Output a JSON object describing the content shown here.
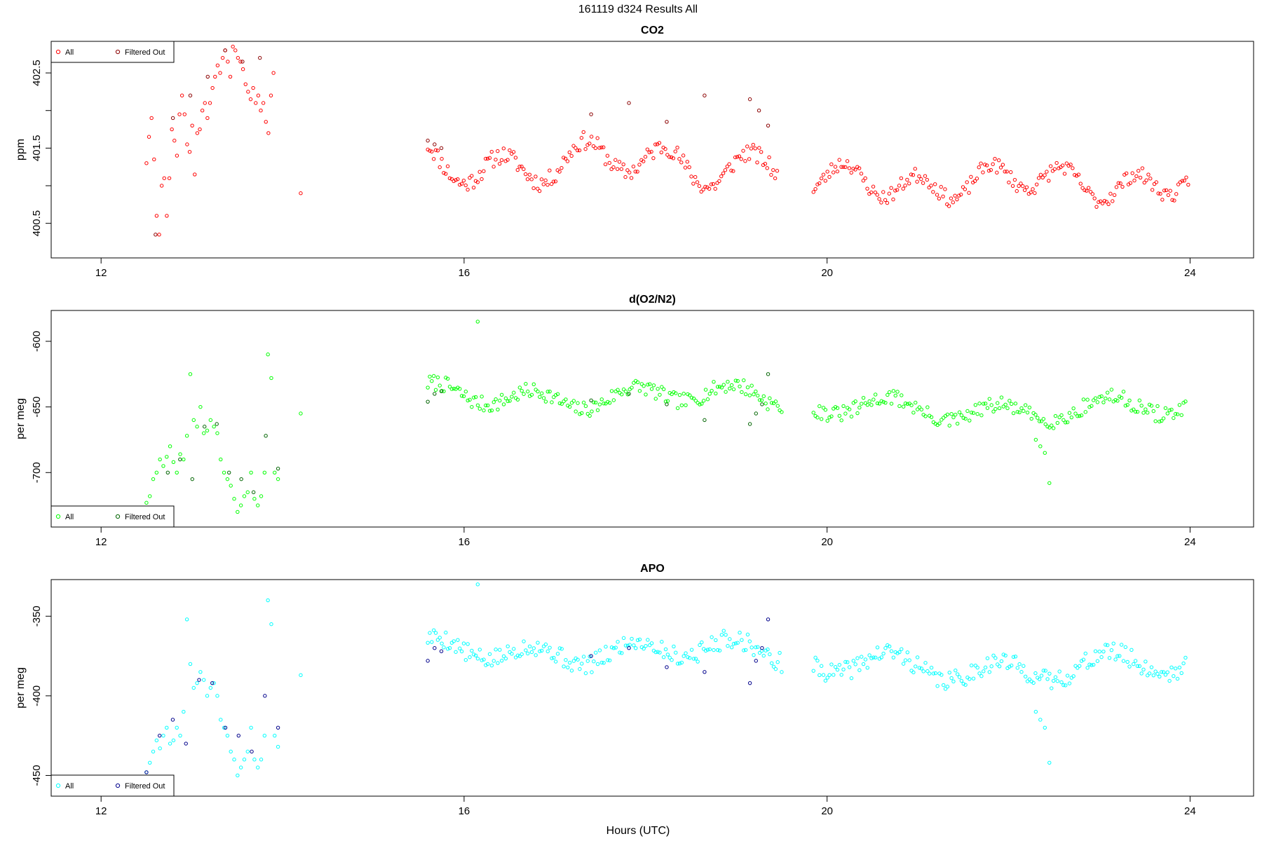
{
  "figure_title": "161119   d324   Results All",
  "x_axis_label": "Hours (UTC)",
  "chart_data": [
    {
      "type": "scatter",
      "title": "CO2",
      "ylabel": "ppm",
      "xlim": [
        11.45,
        24.7
      ],
      "ylim": [
        400.04,
        402.92
      ],
      "xticks": [
        12,
        16,
        20,
        24
      ],
      "yticks": [
        400.5,
        401.0,
        401.5,
        402.0,
        402.5
      ],
      "ytick_labels": [
        "400.5",
        "",
        "401.5",
        "",
        "402.5"
      ],
      "colors": {
        "all": "#ff0000",
        "filtered": "#8b0000"
      },
      "legend": {
        "position": "top-left",
        "entries": [
          "All",
          "Filtered Out"
        ]
      },
      "series": [
        {
          "key": "all",
          "segments": [
            {
              "x0": 12.5,
              "x1": 13.9,
              "points": [
                401.3,
                401.65,
                401.9,
                401.35,
                400.6,
                400.35,
                401.0,
                401.1,
                400.6,
                401.1,
                401.75,
                401.6,
                401.4,
                401.95,
                402.2,
                401.95,
                401.55,
                401.45,
                401.8,
                401.15,
                401.7,
                401.75,
                402.0,
                402.1,
                401.9,
                402.1,
                402.3,
                402.45,
                402.6,
                402.5,
                402.7,
                402.8,
                402.65,
                402.45,
                402.85,
                402.8,
                402.7,
                402.65,
                402.55,
                402.35,
                402.25,
                402.15,
                402.3,
                402.1,
                402.2,
                402.0,
                402.1,
                401.85,
                401.7,
                402.2,
                402.5
              ]
            },
            {
              "x0": 14.2,
              "x1": 14.2,
              "points": [
                400.9
              ]
            },
            {
              "x0": 15.6,
              "x1": 19.45,
              "series": "wave",
              "base": 401.3,
              "amp": 0.22,
              "period": 0.9,
              "noise": 0.12,
              "seed": 11
            },
            {
              "x0": 19.85,
              "x1": 23.98,
              "series": "wave",
              "base": 401.05,
              "amp": 0.18,
              "period": 0.8,
              "noise": 0.1,
              "seed": 23
            }
          ]
        },
        {
          "key": "filtered",
          "segments": [
            {
              "x0": 12.6,
              "x1": 13.75,
              "points": [
                400.35,
                401.9,
                402.2,
                402.45,
                402.8,
                402.65,
                402.7
              ]
            },
            {
              "x0": 15.6,
              "x1": 15.75,
              "points": [
                401.6,
                401.55,
                401.5
              ]
            },
            {
              "x0": 17.4,
              "x1": 18.65,
              "points": [
                401.95,
                402.1,
                401.85,
                402.2
              ]
            },
            {
              "x0": 19.15,
              "x1": 19.35,
              "points": [
                402.15,
                402.0,
                401.8
              ]
            }
          ]
        }
      ]
    },
    {
      "type": "scatter",
      "title": "d(O2/N2)",
      "ylabel": "per meg",
      "xlim": [
        11.45,
        24.7
      ],
      "ylim": [
        -741.5,
        -576.5
      ],
      "xticks": [
        12,
        16,
        20,
        24
      ],
      "yticks": [
        -700,
        -650,
        -600
      ],
      "ytick_labels": [
        "-700",
        "-650",
        "-600"
      ],
      "colors": {
        "all": "#00ff00",
        "filtered": "#006400"
      },
      "legend": {
        "position": "bottom-left",
        "entries": [
          "All",
          "Filtered Out"
        ]
      },
      "series": [
        {
          "key": "all",
          "segments": [
            {
              "x0": 12.5,
              "x1": 13.95,
              "points": [
                -723,
                -718,
                -705,
                -700,
                -690,
                -695,
                -688,
                -680,
                -692,
                -700,
                -686,
                -690,
                -672,
                -625,
                -660,
                -665,
                -650,
                -670,
                -668,
                -660,
                -665,
                -670,
                -690,
                -700,
                -705,
                -710,
                -720,
                -730,
                -725,
                -718,
                -715,
                -700,
                -720,
                -725,
                -718,
                -700,
                -610,
                -628,
                -700,
                -705
              ]
            },
            {
              "x0": 14.2,
              "x1": 14.2,
              "points": [
                -655
              ]
            },
            {
              "x0": 15.6,
              "x1": 19.5,
              "series": "wave",
              "base": -642,
              "amp": 7,
              "period": 1.1,
              "noise": 6,
              "seed": 7
            },
            {
              "x0": 16.15,
              "x1": 16.15,
              "points": [
                -585
              ]
            },
            {
              "x0": 19.85,
              "x1": 23.95,
              "series": "wave",
              "base": -652,
              "amp": 7,
              "period": 1.2,
              "noise": 6,
              "seed": 31
            },
            {
              "x0": 22.3,
              "x1": 22.45,
              "points": [
                -675,
                -680,
                -685,
                -708
              ]
            }
          ]
        },
        {
          "key": "filtered",
          "segments": [
            {
              "x0": 12.6,
              "x1": 13.95,
              "points": [
                -728,
                -700,
                -690,
                -705,
                -665,
                -663,
                -700,
                -705,
                -715,
                -672,
                -697
              ]
            },
            {
              "x0": 15.6,
              "x1": 15.75,
              "points": [
                -646,
                -640,
                -638
              ]
            },
            {
              "x0": 17.4,
              "x1": 18.65,
              "points": [
                -645,
                -640,
                -648,
                -660
              ]
            },
            {
              "x0": 19.15,
              "x1": 19.35,
              "points": [
                -663,
                -655,
                -648,
                -625
              ]
            }
          ]
        }
      ]
    },
    {
      "type": "scatter",
      "title": "APO",
      "ylabel": "per meg",
      "xlim": [
        11.45,
        24.7
      ],
      "ylim": [
        -463,
        -327
      ],
      "xticks": [
        12,
        16,
        20,
        24
      ],
      "yticks": [
        -450,
        -400,
        -350
      ],
      "ytick_labels": [
        "-450",
        "-400",
        "-350"
      ],
      "colors": {
        "all": "#00ffff",
        "filtered": "#00008b"
      },
      "legend": {
        "position": "bottom-left",
        "entries": [
          "All",
          "Filtered Out"
        ]
      },
      "series": [
        {
          "key": "all",
          "segments": [
            {
              "x0": 12.5,
              "x1": 13.95,
              "points": [
                -448,
                -442,
                -435,
                -428,
                -433,
                -425,
                -420,
                -430,
                -428,
                -420,
                -425,
                -410,
                -352,
                -380,
                -395,
                -392,
                -385,
                -390,
                -400,
                -395,
                -392,
                -400,
                -415,
                -420,
                -425,
                -435,
                -440,
                -450,
                -445,
                -440,
                -435,
                -420,
                -440,
                -445,
                -440,
                -425,
                -340,
                -355,
                -425,
                -432
              ]
            },
            {
              "x0": 14.2,
              "x1": 14.2,
              "points": [
                -387
              ]
            },
            {
              "x0": 15.6,
              "x1": 19.5,
              "series": "wave",
              "base": -372,
              "amp": 6,
              "period": 1.1,
              "noise": 6,
              "seed": 5
            },
            {
              "x0": 16.15,
              "x1": 16.15,
              "points": [
                -330
              ]
            },
            {
              "x0": 19.85,
              "x1": 23.95,
              "series": "wave",
              "base": -382,
              "amp": 7,
              "period": 1.2,
              "noise": 6,
              "seed": 41
            },
            {
              "x0": 22.3,
              "x1": 22.45,
              "points": [
                -410,
                -415,
                -420,
                -442
              ]
            }
          ]
        },
        {
          "key": "filtered",
          "segments": [
            {
              "x0": 12.5,
              "x1": 13.95,
              "points": [
                -448,
                -425,
                -415,
                -430,
                -390,
                -392,
                -420,
                -425,
                -435,
                -400,
                -420
              ]
            },
            {
              "x0": 15.6,
              "x1": 15.75,
              "points": [
                -378,
                -370,
                -372
              ]
            },
            {
              "x0": 17.4,
              "x1": 18.65,
              "points": [
                -375,
                -370,
                -382,
                -385
              ]
            },
            {
              "x0": 19.15,
              "x1": 19.35,
              "points": [
                -392,
                -378,
                -370,
                -352
              ]
            }
          ]
        }
      ]
    }
  ]
}
